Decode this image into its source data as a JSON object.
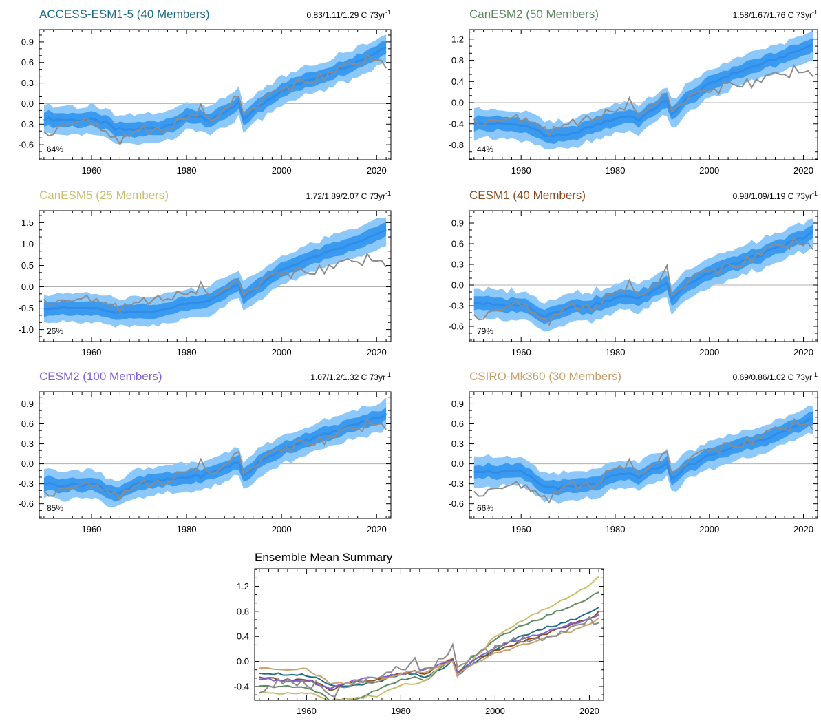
{
  "page_title": "",
  "colors": {
    "observed": "#8c8c8c",
    "mean": "#2f8ce8",
    "inner_band": "#3a9af0",
    "outer_band": "#8cc8fa",
    "zero_line": "#b0b0b0"
  },
  "chart_data": [
    {
      "id": "access",
      "type": "line",
      "title": "ACCESS-ESM1-5 (40 Members)",
      "title_color": "#1e6b86",
      "trend": {
        "text": "0.83/1.11/1.29 C 73yr",
        "sup": "-1"
      },
      "percent_label": "64%",
      "xlim": [
        1949,
        2023
      ],
      "ylim": [
        -0.82,
        1.08
      ],
      "xticks": [
        1960,
        1980,
        2000,
        2020
      ],
      "yticks": [
        "0.9",
        "0.6",
        "0.3",
        "0.0",
        "-0.3",
        "-0.6"
      ],
      "ytick_values": [
        0.9,
        0.6,
        0.3,
        0.0,
        -0.3,
        -0.6
      ],
      "x": [
        1950,
        1955,
        1960,
        1963,
        1965,
        1970,
        1975,
        1980,
        1983,
        1985,
        1990,
        1991,
        1992,
        1995,
        2000,
        2005,
        2010,
        2015,
        2020,
        2022
      ],
      "series": [
        {
          "name": "",
          "values": [
            -0.22,
            -0.24,
            -0.24,
            -0.28,
            -0.38,
            -0.38,
            -0.34,
            -0.2,
            -0.18,
            -0.26,
            -0.05,
            0.01,
            -0.22,
            -0.05,
            0.2,
            0.32,
            0.45,
            0.58,
            0.75,
            0.84
          ]
        },
        {
          "name": "",
          "values": [
            -0.48,
            -0.22,
            -0.3,
            -0.42,
            -0.55,
            -0.38,
            -0.4,
            -0.2,
            -0.08,
            -0.25,
            0.05,
            0.12,
            -0.1,
            0.02,
            0.2,
            0.35,
            0.4,
            0.55,
            0.7,
            0.6
          ]
        }
      ]
    },
    {
      "id": "canesm2",
      "type": "line",
      "title": "CanESM2 (50 Members)",
      "title_color": "#5c8a60",
      "trend": {
        "text": "1.58/1.67/1.76 C 73yr",
        "sup": "-1"
      },
      "percent_label": "44%",
      "xlim": [
        1949,
        2023
      ],
      "ylim": [
        -1.08,
        1.38
      ],
      "xticks": [
        1960,
        1980,
        2000,
        2020
      ],
      "yticks": [
        "1.2",
        "0.8",
        "0.4",
        "0.0",
        "-0.4",
        "-0.8"
      ],
      "ytick_values": [
        1.2,
        0.8,
        0.4,
        0.0,
        -0.4,
        -0.8
      ],
      "x": [
        1950,
        1955,
        1960,
        1963,
        1965,
        1970,
        1975,
        1980,
        1983,
        1985,
        1990,
        1991,
        1992,
        1995,
        2000,
        2005,
        2010,
        2015,
        2020,
        2022
      ],
      "series": [
        {
          "name": "",
          "values": [
            -0.4,
            -0.4,
            -0.42,
            -0.5,
            -0.62,
            -0.62,
            -0.45,
            -0.3,
            -0.25,
            -0.32,
            0.0,
            0.02,
            -0.22,
            0.05,
            0.35,
            0.55,
            0.7,
            0.85,
            1.02,
            1.1
          ]
        },
        {
          "name": "",
          "values": [
            -0.4,
            -0.25,
            -0.35,
            -0.4,
            -0.55,
            -0.4,
            -0.3,
            -0.15,
            0.0,
            -0.22,
            0.1,
            0.2,
            -0.1,
            0.1,
            0.2,
            0.4,
            0.35,
            0.5,
            0.65,
            0.6
          ]
        }
      ]
    },
    {
      "id": "canesm5",
      "type": "line",
      "title": "CanESM5 (25 Members)",
      "title_color": "#c9be6c",
      "trend": {
        "text": "1.72/1.89/2.07 C 73yr",
        "sup": "-1"
      },
      "percent_label": "26%",
      "xlim": [
        1949,
        2023
      ],
      "ylim": [
        -1.28,
        1.78
      ],
      "xticks": [
        1960,
        1980,
        2000,
        2020
      ],
      "yticks": [
        "1.5",
        "1.0",
        "0.5",
        "0.0",
        "-0.5",
        "-1.0"
      ],
      "ytick_values": [
        1.5,
        1.0,
        0.5,
        0.0,
        -0.5,
        -1.0
      ],
      "x": [
        1950,
        1955,
        1960,
        1963,
        1965,
        1970,
        1975,
        1980,
        1983,
        1985,
        1990,
        1991,
        1992,
        1995,
        2000,
        2005,
        2010,
        2015,
        2020,
        2022
      ],
      "series": [
        {
          "name": "",
          "values": [
            -0.5,
            -0.5,
            -0.5,
            -0.55,
            -0.62,
            -0.58,
            -0.55,
            -0.38,
            -0.35,
            -0.32,
            0.02,
            0.05,
            -0.22,
            0.0,
            0.4,
            0.62,
            0.82,
            1.0,
            1.22,
            1.32
          ]
        },
        {
          "name": "",
          "values": [
            -0.4,
            -0.22,
            -0.35,
            -0.4,
            -0.5,
            -0.35,
            -0.28,
            -0.15,
            0.0,
            -0.2,
            0.1,
            0.15,
            -0.1,
            0.1,
            0.3,
            0.4,
            0.4,
            0.55,
            0.7,
            0.6
          ]
        }
      ]
    },
    {
      "id": "cesm1",
      "type": "line",
      "title": "CESM1 (40 Members)",
      "title_color": "#8a4a1e",
      "trend": {
        "text": "0.98/1.09/1.19 C 73yr",
        "sup": "-1"
      },
      "percent_label": "79%",
      "xlim": [
        1949,
        2023
      ],
      "ylim": [
        -0.82,
        1.08
      ],
      "xticks": [
        1960,
        1980,
        2000,
        2020
      ],
      "yticks": [
        "0.9",
        "0.6",
        "0.3",
        "0.0",
        "-0.3",
        "-0.6"
      ],
      "ytick_values": [
        0.9,
        0.6,
        0.3,
        0.0,
        -0.3,
        -0.6
      ],
      "x": [
        1950,
        1955,
        1960,
        1963,
        1965,
        1970,
        1975,
        1980,
        1983,
        1985,
        1990,
        1991,
        1992,
        1995,
        2000,
        2005,
        2010,
        2015,
        2020,
        2022
      ],
      "series": [
        {
          "name": "",
          "values": [
            -0.25,
            -0.3,
            -0.28,
            -0.38,
            -0.45,
            -0.32,
            -0.3,
            -0.2,
            -0.15,
            -0.2,
            0.0,
            0.02,
            -0.18,
            0.0,
            0.18,
            0.3,
            0.42,
            0.55,
            0.7,
            0.78
          ]
        },
        {
          "name": "",
          "values": [
            -0.5,
            -0.3,
            -0.3,
            -0.42,
            -0.55,
            -0.3,
            -0.35,
            -0.1,
            0.0,
            -0.15,
            0.1,
            0.3,
            -0.1,
            0.05,
            0.2,
            0.3,
            0.4,
            0.55,
            0.65,
            0.6
          ]
        }
      ]
    },
    {
      "id": "cesm2",
      "type": "line",
      "title": "CESM2 (100 Members)",
      "title_color": "#7f60d4",
      "trend": {
        "text": "1.07/1.2/1.32 C 73yr",
        "sup": "-1"
      },
      "percent_label": "85%",
      "xlim": [
        1949,
        2023
      ],
      "ylim": [
        -0.82,
        1.08
      ],
      "xticks": [
        1960,
        1980,
        2000,
        2020
      ],
      "yticks": [
        "0.9",
        "0.6",
        "0.3",
        "0.0",
        "-0.3",
        "-0.6"
      ],
      "ytick_values": [
        0.9,
        0.6,
        0.3,
        0.0,
        -0.3,
        -0.6
      ],
      "x": [
        1950,
        1955,
        1960,
        1963,
        1965,
        1970,
        1975,
        1980,
        1983,
        1985,
        1990,
        1991,
        1992,
        1995,
        2000,
        2005,
        2010,
        2015,
        2020,
        2022
      ],
      "series": [
        {
          "name": "",
          "values": [
            -0.3,
            -0.32,
            -0.3,
            -0.38,
            -0.45,
            -0.3,
            -0.25,
            -0.2,
            -0.18,
            -0.15,
            0.0,
            0.02,
            -0.18,
            0.0,
            0.22,
            0.35,
            0.45,
            0.58,
            0.68,
            0.75
          ]
        },
        {
          "name": "",
          "values": [
            -0.48,
            -0.3,
            -0.35,
            -0.4,
            -0.5,
            -0.3,
            -0.3,
            -0.1,
            0.0,
            -0.15,
            0.1,
            0.2,
            -0.1,
            0.05,
            0.2,
            0.35,
            0.35,
            0.5,
            0.65,
            0.6
          ]
        }
      ]
    },
    {
      "id": "csiro",
      "type": "line",
      "title": "CSIRO-Mk360 (30 Members)",
      "title_color": "#c9a06c",
      "trend": {
        "text": "0.69/0.86/1.02 C 73yr",
        "sup": "-1"
      },
      "percent_label": "66%",
      "xlim": [
        1949,
        2023
      ],
      "ylim": [
        -0.82,
        1.08
      ],
      "xticks": [
        1960,
        1980,
        2000,
        2020
      ],
      "yticks": [
        "0.9",
        "0.6",
        "0.3",
        "0.0",
        "-0.3",
        "-0.6"
      ],
      "ytick_values": [
        0.9,
        0.6,
        0.3,
        0.0,
        -0.3,
        -0.6
      ],
      "x": [
        1950,
        1955,
        1960,
        1963,
        1965,
        1970,
        1975,
        1980,
        1983,
        1985,
        1990,
        1991,
        1992,
        1995,
        2000,
        2005,
        2010,
        2015,
        2020,
        2022
      ],
      "series": [
        {
          "name": "",
          "values": [
            -0.1,
            -0.12,
            -0.12,
            -0.25,
            -0.35,
            -0.35,
            -0.32,
            -0.18,
            -0.15,
            -0.2,
            -0.02,
            0.0,
            -0.22,
            -0.05,
            0.12,
            0.25,
            0.35,
            0.45,
            0.6,
            0.7
          ]
        },
        {
          "name": "",
          "values": [
            -0.48,
            -0.3,
            -0.35,
            -0.42,
            -0.55,
            -0.3,
            -0.35,
            -0.05,
            0.0,
            -0.15,
            0.1,
            0.2,
            -0.1,
            0.05,
            0.2,
            0.3,
            0.35,
            0.5,
            0.65,
            0.6
          ]
        }
      ]
    },
    {
      "id": "summary",
      "type": "line",
      "title": "Ensemble Mean Summary",
      "title_color": "#000000",
      "xlim": [
        1949,
        2023
      ],
      "ylim": [
        -0.62,
        1.48
      ],
      "xticks": [
        1960,
        1980,
        2000,
        2020
      ],
      "yticks": [
        "1.2",
        "0.8",
        "0.4",
        "0.0",
        "-0.4"
      ],
      "ytick_values": [
        1.2,
        0.8,
        0.4,
        0.0,
        -0.4
      ],
      "x": [
        1950,
        1955,
        1960,
        1963,
        1965,
        1970,
        1975,
        1980,
        1983,
        1985,
        1990,
        1991,
        1992,
        1995,
        2000,
        2005,
        2010,
        2015,
        2020,
        2022
      ],
      "series": [
        {
          "name": "",
          "color": "#1e6b86",
          "values": [
            -0.18,
            -0.2,
            -0.22,
            -0.28,
            -0.38,
            -0.38,
            -0.34,
            -0.2,
            -0.18,
            -0.26,
            -0.05,
            0.01,
            -0.22,
            -0.05,
            0.2,
            0.38,
            0.52,
            0.62,
            0.78,
            0.86
          ]
        },
        {
          "name": "",
          "color": "#5c8a60",
          "values": [
            -0.4,
            -0.4,
            -0.42,
            -0.5,
            -0.62,
            -0.62,
            -0.45,
            -0.3,
            -0.25,
            -0.32,
            0.0,
            0.02,
            -0.22,
            0.05,
            0.35,
            0.55,
            0.7,
            0.85,
            1.02,
            1.1
          ]
        },
        {
          "name": "",
          "color": "#c9be6c",
          "values": [
            -0.5,
            -0.5,
            -0.5,
            -0.55,
            -0.62,
            -0.58,
            -0.55,
            -0.38,
            -0.35,
            -0.32,
            0.02,
            0.05,
            -0.22,
            0.0,
            0.4,
            0.62,
            0.82,
            1.0,
            1.22,
            1.34
          ]
        },
        {
          "name": "",
          "color": "#8a4a1e",
          "values": [
            -0.25,
            -0.3,
            -0.28,
            -0.38,
            -0.45,
            -0.32,
            -0.3,
            -0.2,
            -0.15,
            -0.2,
            0.0,
            0.02,
            -0.18,
            0.0,
            0.18,
            0.3,
            0.42,
            0.55,
            0.7,
            0.78
          ]
        },
        {
          "name": "",
          "color": "#7f60d4",
          "values": [
            -0.28,
            -0.3,
            -0.3,
            -0.38,
            -0.45,
            -0.3,
            -0.25,
            -0.2,
            -0.18,
            -0.15,
            0.0,
            0.02,
            -0.18,
            0.0,
            0.22,
            0.35,
            0.45,
            0.58,
            0.68,
            0.74
          ]
        },
        {
          "name": "",
          "color": "#c9a06c",
          "values": [
            -0.1,
            -0.12,
            -0.12,
            -0.25,
            -0.35,
            -0.35,
            -0.32,
            -0.18,
            -0.15,
            -0.2,
            -0.02,
            0.0,
            -0.22,
            -0.05,
            0.12,
            0.25,
            0.35,
            0.45,
            0.6,
            0.7
          ]
        },
        {
          "name": "",
          "color": "#8c8c8c",
          "values": [
            -0.48,
            -0.3,
            -0.35,
            -0.4,
            -0.55,
            -0.35,
            -0.3,
            -0.1,
            0.0,
            -0.15,
            0.1,
            0.2,
            -0.1,
            0.05,
            0.2,
            0.35,
            0.35,
            0.5,
            0.65,
            0.6
          ]
        }
      ]
    }
  ]
}
